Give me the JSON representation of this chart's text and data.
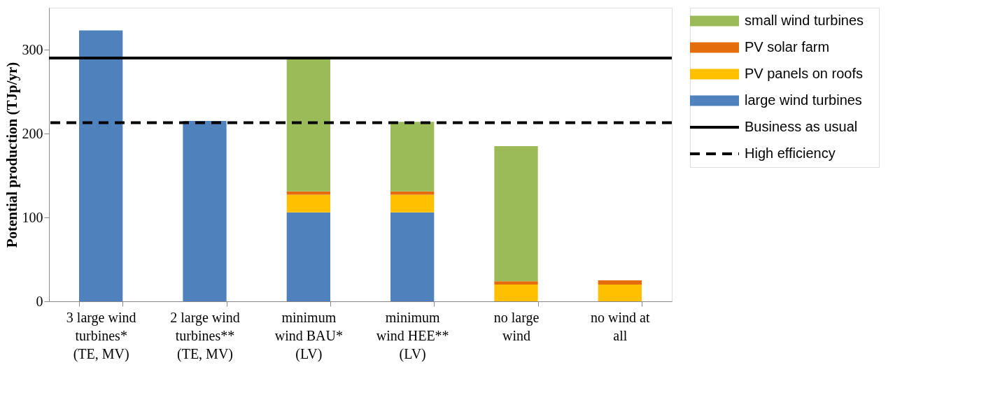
{
  "chart_data": {
    "type": "bar",
    "stacked": true,
    "ylabel": "Potential production (TJp/yr)",
    "categories": [
      "3 large wind\nturbines*\n(TE, MV)",
      "2 large wind\nturbines**\n(TE, MV)",
      "minimum\nwind BAU*\n(LV)",
      "minimum\nwind HEE**\n(LV)",
      "no large\nwind",
      "no wind at\nall"
    ],
    "series": [
      {
        "name": "large wind turbines",
        "color": "#4f81bd",
        "values": [
          323,
          215,
          106,
          106,
          null,
          null
        ]
      },
      {
        "name": "PV panels on roofs",
        "color": "#ffc000",
        "values": [
          null,
          null,
          21,
          21,
          20,
          20
        ]
      },
      {
        "name": "PV solar farm",
        "color": "#e46c0a",
        "values": [
          null,
          null,
          4,
          4,
          4,
          5
        ]
      },
      {
        "name": "small wind turbines",
        "color": "#9bbb59",
        "values": [
          null,
          null,
          159,
          83,
          161,
          null
        ]
      }
    ],
    "ref_lines": [
      {
        "axis": "y",
        "value": 290,
        "label": "Business as usual",
        "color": "#000000",
        "line_style": "solid"
      },
      {
        "axis": "y",
        "value": 213,
        "label": "High efficiency",
        "color": "#000000",
        "line_style": "dashed"
      }
    ],
    "ylim": [
      0,
      350
    ],
    "yticks": [
      0,
      100,
      200,
      300
    ],
    "grid": false,
    "legend": "right"
  }
}
